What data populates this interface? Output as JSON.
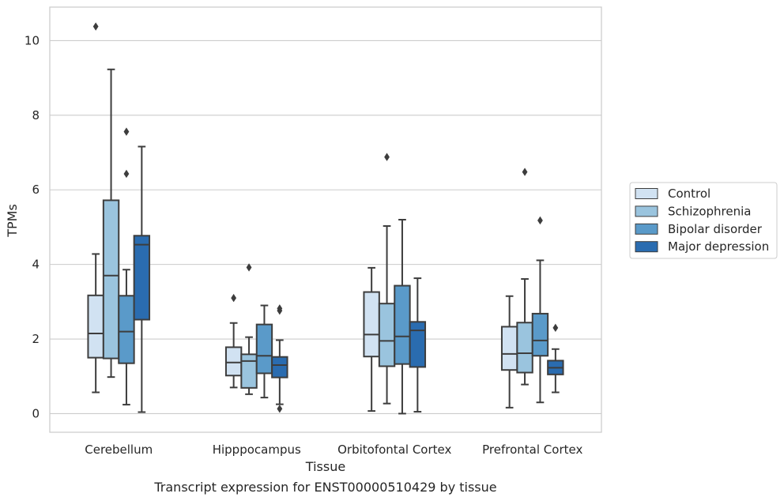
{
  "chart_data": {
    "type": "box",
    "xlabel": "Tissue",
    "ylabel": "TPMs",
    "caption": "Transcript expression for ENST00000510429 by tissue",
    "ylim": [
      -0.5,
      10.9
    ],
    "yticks": [
      0,
      2,
      4,
      6,
      8,
      10
    ],
    "grid": "horizontal",
    "legend_position": "right",
    "categories": [
      "Cerebellum",
      "Hipppocampus",
      "Orbitofontal Cortex",
      "Prefrontal Cortex"
    ],
    "series": [
      {
        "name": "Control",
        "color": "#d1e2f2",
        "boxes": [
          {
            "whisker_low": 0.57,
            "q1": 1.5,
            "median": 2.15,
            "q3": 3.17,
            "whisker_high": 4.28,
            "outliers": [
              10.38
            ]
          },
          {
            "whisker_low": 0.7,
            "q1": 1.02,
            "median": 1.37,
            "q3": 1.78,
            "whisker_high": 2.43,
            "outliers": [
              3.1
            ]
          },
          {
            "whisker_low": 0.07,
            "q1": 1.53,
            "median": 2.12,
            "q3": 3.26,
            "whisker_high": 3.91,
            "outliers": []
          },
          {
            "whisker_low": 0.16,
            "q1": 1.17,
            "median": 1.6,
            "q3": 2.33,
            "whisker_high": 3.15,
            "outliers": []
          }
        ]
      },
      {
        "name": "Schizophrenia",
        "color": "#9ac4de",
        "boxes": [
          {
            "whisker_low": 0.98,
            "q1": 1.48,
            "median": 3.7,
            "q3": 5.72,
            "whisker_high": 9.23,
            "outliers": []
          },
          {
            "whisker_low": 0.52,
            "q1": 0.69,
            "median": 1.41,
            "q3": 1.59,
            "whisker_high": 2.05,
            "outliers": [
              3.92
            ]
          },
          {
            "whisker_low": 0.27,
            "q1": 1.27,
            "median": 1.95,
            "q3": 2.95,
            "whisker_high": 5.03,
            "outliers": [
              6.88
            ]
          },
          {
            "whisker_low": 0.78,
            "q1": 1.1,
            "median": 1.62,
            "q3": 2.44,
            "whisker_high": 3.61,
            "outliers": [
              6.48
            ]
          }
        ]
      },
      {
        "name": "Bipolar disorder",
        "color": "#5a9ac9",
        "boxes": [
          {
            "whisker_low": 0.24,
            "q1": 1.35,
            "median": 2.2,
            "q3": 3.16,
            "whisker_high": 3.86,
            "outliers": [
              7.56,
              6.43
            ]
          },
          {
            "whisker_low": 0.43,
            "q1": 1.08,
            "median": 1.55,
            "q3": 2.39,
            "whisker_high": 2.9,
            "outliers": []
          },
          {
            "whisker_low": 0.0,
            "q1": 1.33,
            "median": 2.07,
            "q3": 3.43,
            "whisker_high": 5.2,
            "outliers": []
          },
          {
            "whisker_low": 0.3,
            "q1": 1.55,
            "median": 1.96,
            "q3": 2.68,
            "whisker_high": 4.11,
            "outliers": [
              5.18
            ]
          }
        ]
      },
      {
        "name": "Major depression",
        "color": "#2a6cb0",
        "boxes": [
          {
            "whisker_low": 0.04,
            "q1": 2.52,
            "median": 4.53,
            "q3": 4.77,
            "whisker_high": 7.16,
            "outliers": []
          },
          {
            "whisker_low": 0.25,
            "q1": 0.97,
            "median": 1.3,
            "q3": 1.52,
            "whisker_high": 1.97,
            "outliers": [
              2.82,
              2.76,
              0.13
            ]
          },
          {
            "whisker_low": 0.05,
            "q1": 1.25,
            "median": 2.23,
            "q3": 2.46,
            "whisker_high": 3.63,
            "outliers": []
          },
          {
            "whisker_low": 0.57,
            "q1": 1.05,
            "median": 1.23,
            "q3": 1.42,
            "whisker_high": 1.73,
            "outliers": [
              2.3
            ]
          }
        ]
      }
    ]
  }
}
